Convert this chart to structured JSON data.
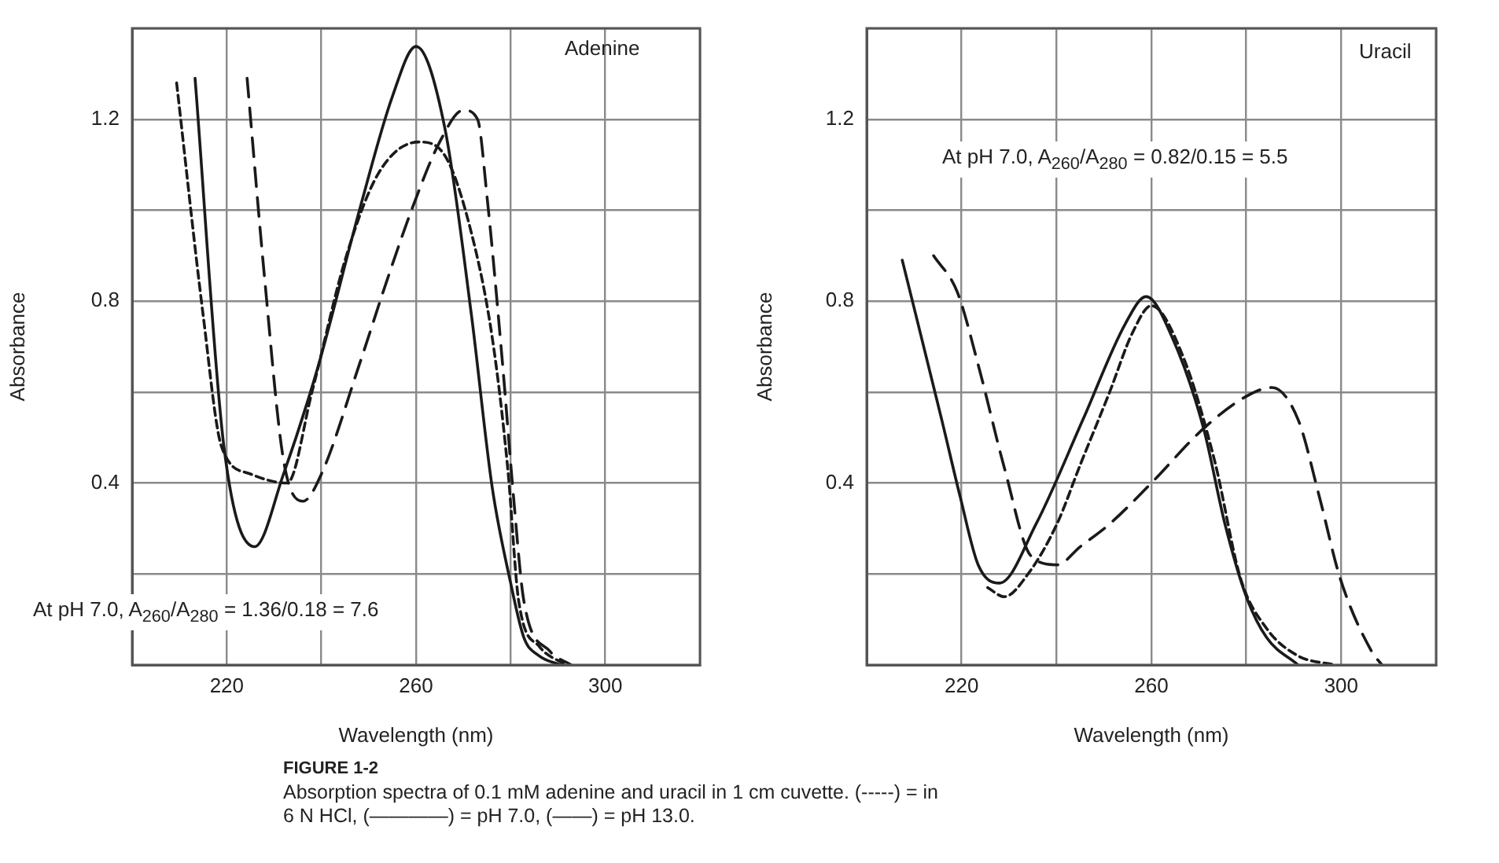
{
  "chart_data": [
    {
      "type": "line",
      "xlabel": "Wavelength (nm)",
      "ylabel": "Absorbance",
      "grid": true,
      "marker": "none",
      "xlim": [
        200,
        320
      ],
      "xticks": [
        {
          "value": 200,
          "label": null
        },
        220,
        {
          "value": 240,
          "label": null
        },
        260,
        {
          "value": 280,
          "label": null
        },
        300,
        {
          "value": 320,
          "label": null
        }
      ],
      "ylim": [
        0,
        1.4
      ],
      "yticks": [
        {
          "value": 0,
          "label": null
        },
        {
          "value": 0.2,
          "label": null
        },
        0.4,
        {
          "value": 0.6,
          "label": null
        },
        0.8,
        {
          "value": 1.0,
          "label": null
        },
        1.2,
        {
          "value": 1.4,
          "label": null
        }
      ],
      "annotations": [
        "Adenine",
        "At pH 7.0, A$_{260}$/A$_{280}$ = 1.36/0.18 = 7.6",
        "FIGURE 1-2",
        "Absorption spectra of 0.1 mM adenine and uracil in 1 cm cuvette. (-----) = in 6 N HCl, (————) = pH 7.0, (——) = pH 13.0."
      ],
      "series": [
        {
          "color": "#1a1a1a",
          "line_style": "solid",
          "x": [
            213.3,
            219.4,
            225.9,
            232,
            239.4,
            248.3,
            255,
            260,
            266.1,
            271.7,
            276.1,
            280,
            282.8,
            286,
            290.6
          ],
          "values": [
            1.29,
            0.48,
            0.26,
            0.42,
            0.66,
            1.01,
            1.25,
            1.36,
            1.18,
            0.77,
            0.39,
            0.18,
            0.06,
            0.02,
            0
          ]
        },
        {
          "color": "#1a1a1a",
          "line_style": "dotted",
          "x": [
            209.4,
            215,
            218.9,
            225,
            232.8,
            238,
            245,
            252,
            260.6,
            266.1,
            271.7,
            276.1,
            279.4,
            281.7,
            286.1,
            291.7
          ],
          "values": [
            1.28,
            0.77,
            0.48,
            0.42,
            0.4,
            0.6,
            0.89,
            1.08,
            1.15,
            1.12,
            0.95,
            0.72,
            0.43,
            0.14,
            0.04,
            0
          ]
        },
        {
          "color": "#1a1a1a",
          "line_style": "dashed",
          "x": [
            224.3,
            228,
            232,
            236.1,
            240,
            248,
            254,
            259.4,
            265,
            270,
            273,
            275,
            278.3,
            280.6,
            282.8,
            288.3,
            292.8
          ],
          "values": [
            1.29,
            0.85,
            0.45,
            0.36,
            0.42,
            0.66,
            0.85,
            1.01,
            1.15,
            1.22,
            1.2,
            1.03,
            0.66,
            0.37,
            0.14,
            0.03,
            0
          ]
        }
      ]
    },
    {
      "type": "line",
      "xlabel": "Wavelength (nm)",
      "ylabel": "Absorbance",
      "grid": true,
      "marker": "none",
      "xlim": [
        200,
        320
      ],
      "xticks": [
        {
          "value": 200,
          "label": null
        },
        220,
        {
          "value": 240,
          "label": null
        },
        260,
        {
          "value": 280,
          "label": null
        },
        300,
        {
          "value": 320,
          "label": null
        }
      ],
      "ylim": [
        0,
        1.4
      ],
      "yticks": [
        {
          "value": 0,
          "label": null
        },
        {
          "value": 0.2,
          "label": null
        },
        0.4,
        {
          "value": 0.6,
          "label": null
        },
        0.8,
        {
          "value": 1.0,
          "label": null
        },
        1.2,
        {
          "value": 1.4,
          "label": null
        }
      ],
      "annotations": [
        "Uracil",
        "At pH 7.0, A$_{260}$/A$_{280}$ = 0.82/0.15 = 5.5"
      ],
      "series": [
        {
          "color": "#1a1a1a",
          "line_style": "solid",
          "x": [
            207.5,
            215.8,
            219.7,
            223.5,
            228,
            235.7,
            245.6,
            254.5,
            258.9,
            264.4,
            271,
            275.5,
            280,
            284.3,
            290.9
          ],
          "values": [
            0.89,
            0.54,
            0.37,
            0.22,
            0.18,
            0.31,
            0.54,
            0.75,
            0.81,
            0.72,
            0.52,
            0.31,
            0.15,
            0.06,
            0
          ]
        },
        {
          "color": "#1a1a1a",
          "line_style": "dotted",
          "x": [
            225.5,
            229,
            234,
            240.1,
            245,
            251.2,
            256,
            260,
            266.6,
            273.3,
            278.8,
            284.3,
            290.9,
            298.7
          ],
          "values": [
            0.17,
            0.15,
            0.2,
            0.31,
            0.44,
            0.6,
            0.73,
            0.79,
            0.68,
            0.45,
            0.19,
            0.08,
            0.02,
            0
          ]
        },
        {
          "color": "#1a1a1a",
          "line_style": "dashed",
          "x": [
            214.1,
            219.1,
            223.5,
            229.1,
            234.6,
            240.1,
            245,
            251.2,
            260,
            271,
            279.9,
            285.4,
            290.9,
            295.4,
            299.8,
            306.4,
            308.6
          ],
          "values": [
            0.9,
            0.82,
            0.66,
            0.43,
            0.24,
            0.22,
            0.26,
            0.31,
            0.4,
            0.52,
            0.59,
            0.61,
            0.54,
            0.37,
            0.19,
            0.03,
            0
          ]
        }
      ]
    }
  ]
}
